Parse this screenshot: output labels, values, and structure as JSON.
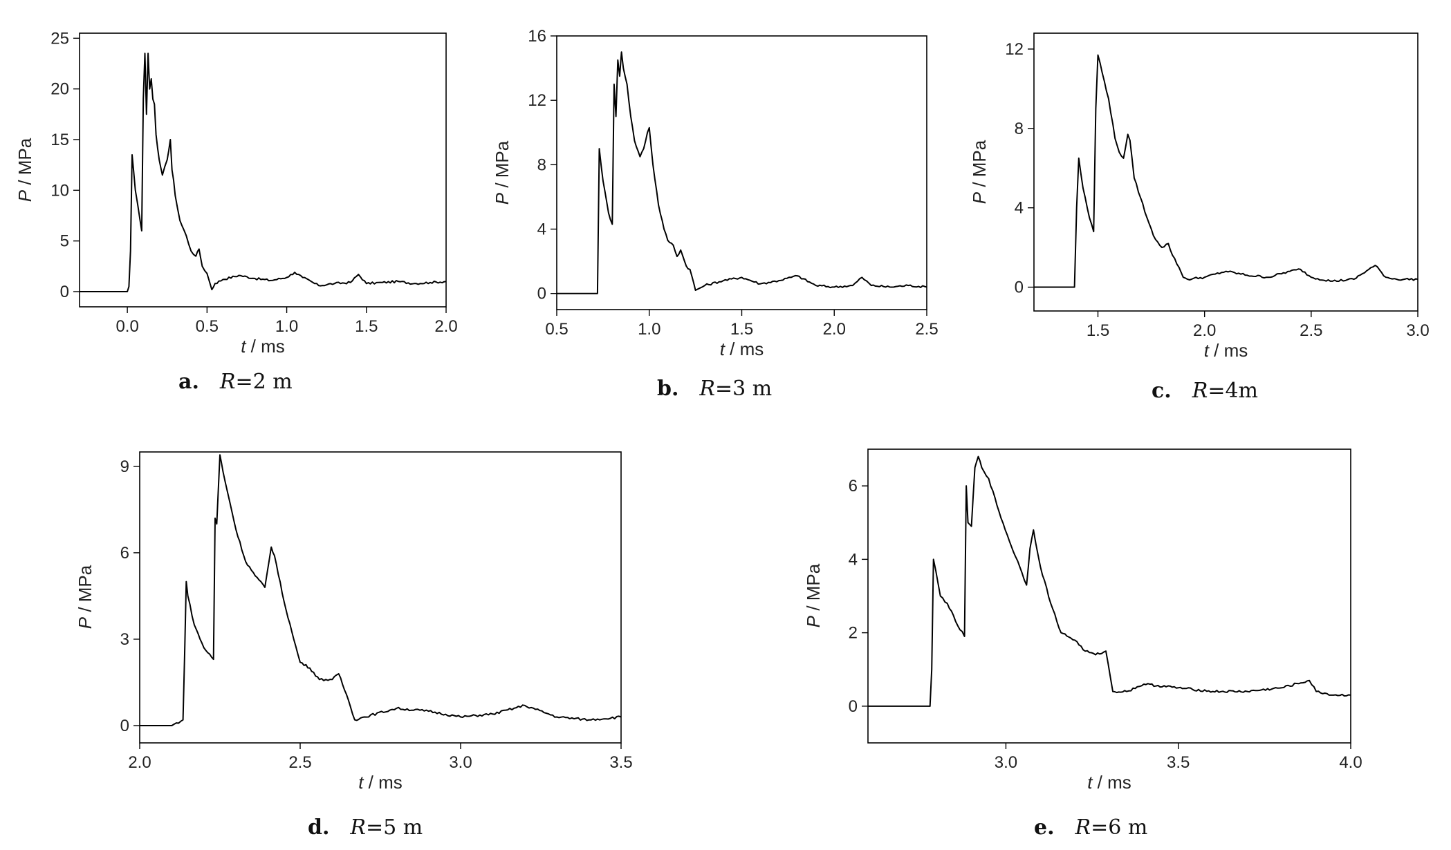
{
  "chart_data": [
    {
      "type": "line",
      "caption": {
        "letter": "a.",
        "label": "R",
        "value": "=2 m"
      },
      "xlabel": {
        "var": "t",
        "unit": " / ms"
      },
      "ylabel": {
        "var": "P",
        "unit": " / MPa"
      },
      "xlim": [
        -0.3,
        2.0
      ],
      "ylim": [
        -1.5,
        25.5
      ],
      "xticks": [
        0.0,
        0.5,
        1.0,
        1.5,
        2.0
      ],
      "xtick_labels": [
        "0.0",
        "0.5",
        "1.0",
        "1.5",
        "2.0"
      ],
      "yticks": [
        0,
        5,
        10,
        15,
        20,
        25
      ],
      "ytick_labels": [
        "0",
        "5",
        "10",
        "15",
        "20",
        "25"
      ],
      "series": [
        {
          "x": [
            -0.3,
            0.0,
            0.01,
            0.02,
            0.03,
            0.05,
            0.08,
            0.09,
            0.1,
            0.11,
            0.12,
            0.13,
            0.14,
            0.15,
            0.16,
            0.17,
            0.18,
            0.2,
            0.22,
            0.25,
            0.27,
            0.28,
            0.29,
            0.3,
            0.33,
            0.37,
            0.4,
            0.43,
            0.45,
            0.47,
            0.5,
            0.53,
            0.55,
            0.6,
            0.7,
            0.8,
            0.9,
            1.0,
            1.05,
            1.1,
            1.2,
            1.3,
            1.4,
            1.45,
            1.5,
            1.6,
            1.7,
            1.8,
            1.9,
            2.0
          ],
          "y": [
            0,
            0,
            0.5,
            4,
            13.5,
            10,
            7,
            6,
            19,
            23.5,
            17.5,
            23.5,
            20,
            21,
            19,
            18.5,
            15.5,
            13,
            11.5,
            13,
            15,
            12,
            11,
            9.5,
            7,
            5.5,
            4,
            3.5,
            4.2,
            2.5,
            1.8,
            0.2,
            0.8,
            1.2,
            1.6,
            1.3,
            1.1,
            1.4,
            1.9,
            1.4,
            0.6,
            0.8,
            0.9,
            1.7,
            0.8,
            0.9,
            1.0,
            0.8,
            0.9,
            1.0
          ]
        }
      ]
    },
    {
      "type": "line",
      "caption": {
        "letter": "b.",
        "label": "R",
        "value": "=3 m"
      },
      "xlabel": {
        "var": "t",
        "unit": " / ms"
      },
      "ylabel": {
        "var": "P",
        "unit": " / MPa"
      },
      "xlim": [
        0.5,
        2.5
      ],
      "ylim": [
        -1,
        16
      ],
      "xticks": [
        0.5,
        1.0,
        1.5,
        2.0,
        2.5
      ],
      "xtick_labels": [
        "0.5",
        "1.0",
        "1.5",
        "2.0",
        "2.5"
      ],
      "yticks": [
        0,
        4,
        8,
        12,
        16
      ],
      "ytick_labels": [
        "0",
        "4",
        "8",
        "12",
        "16"
      ],
      "series": [
        {
          "x": [
            0.5,
            0.72,
            0.73,
            0.75,
            0.78,
            0.8,
            0.81,
            0.82,
            0.83,
            0.84,
            0.85,
            0.86,
            0.88,
            0.9,
            0.92,
            0.95,
            0.97,
            0.99,
            1.0,
            1.02,
            1.05,
            1.08,
            1.1,
            1.13,
            1.15,
            1.17,
            1.2,
            1.22,
            1.25,
            1.3,
            1.4,
            1.5,
            1.6,
            1.7,
            1.8,
            1.9,
            2.0,
            2.1,
            2.15,
            2.2,
            2.3,
            2.4,
            2.5
          ],
          "y": [
            0,
            0,
            9,
            7,
            5,
            4.3,
            13,
            11,
            14.5,
            13.5,
            15,
            14,
            13,
            11,
            9.5,
            8.5,
            9,
            10,
            10.3,
            8,
            5.5,
            4,
            3.3,
            3,
            2.3,
            2.7,
            1.7,
            1.5,
            0.2,
            0.5,
            0.8,
            1.0,
            0.6,
            0.8,
            1.1,
            0.5,
            0.4,
            0.5,
            1.0,
            0.5,
            0.4,
            0.5,
            0.4
          ]
        }
      ]
    },
    {
      "type": "line",
      "caption": {
        "letter": "c.",
        "label": "R",
        "value": "=4m"
      },
      "xlabel": {
        "var": "t",
        "unit": " / ms"
      },
      "ylabel": {
        "var": "P",
        "unit": " / MPa"
      },
      "xlim": [
        1.2,
        3.0
      ],
      "ylim": [
        -1.2,
        12.8
      ],
      "xticks": [
        1.5,
        2.0,
        2.5,
        3.0
      ],
      "xtick_labels": [
        "1.5",
        "2.0",
        "2.5",
        "3.0"
      ],
      "yticks": [
        0,
        4,
        8,
        12
      ],
      "ytick_labels": [
        "0",
        "4",
        "8",
        "12"
      ],
      "series": [
        {
          "x": [
            1.2,
            1.39,
            1.4,
            1.41,
            1.43,
            1.46,
            1.48,
            1.49,
            1.5,
            1.51,
            1.52,
            1.55,
            1.58,
            1.6,
            1.62,
            1.64,
            1.65,
            1.67,
            1.7,
            1.73,
            1.76,
            1.8,
            1.83,
            1.85,
            1.88,
            1.9,
            1.92,
            2.0,
            2.1,
            2.2,
            2.3,
            2.4,
            2.45,
            2.5,
            2.6,
            2.7,
            2.8,
            2.85,
            2.9,
            3.0
          ],
          "y": [
            0,
            0,
            4,
            6.5,
            5,
            3.5,
            2.8,
            9,
            11.7,
            11.3,
            10.8,
            9.5,
            7.5,
            6.8,
            6.5,
            7.7,
            7.4,
            5.5,
            4.5,
            3.5,
            2.6,
            2.0,
            2.2,
            1.6,
            1.0,
            0.5,
            0.4,
            0.5,
            0.8,
            0.6,
            0.5,
            0.8,
            0.9,
            0.5,
            0.3,
            0.4,
            1.1,
            0.5,
            0.4,
            0.4
          ]
        }
      ]
    },
    {
      "type": "line",
      "caption": {
        "letter": "d.",
        "label": "R",
        "value": "=5 m"
      },
      "xlabel": {
        "var": "t",
        "unit": " / ms"
      },
      "ylabel": {
        "var": "P",
        "unit": " / MPa"
      },
      "xlim": [
        2.0,
        3.5
      ],
      "ylim": [
        -0.6,
        9.5
      ],
      "xticks": [
        2.0,
        2.5,
        3.0,
        3.5
      ],
      "xtick_labels": [
        "2.0",
        "2.5",
        "3.0",
        "3.5"
      ],
      "yticks": [
        0,
        3,
        6,
        9
      ],
      "ytick_labels": [
        "0",
        "3",
        "6",
        "9"
      ],
      "series": [
        {
          "x": [
            2.0,
            2.1,
            2.135,
            2.14,
            2.145,
            2.15,
            2.17,
            2.2,
            2.23,
            2.235,
            2.24,
            2.25,
            2.26,
            2.28,
            2.3,
            2.33,
            2.36,
            2.39,
            2.41,
            2.42,
            2.45,
            2.48,
            2.5,
            2.53,
            2.56,
            2.6,
            2.62,
            2.65,
            2.67,
            2.7,
            2.8,
            2.9,
            3.0,
            3.1,
            3.2,
            3.3,
            3.4,
            3.5
          ],
          "y": [
            0,
            0,
            0.2,
            2.5,
            5,
            4.5,
            3.5,
            2.7,
            2.3,
            7.2,
            7.0,
            9.4,
            8.8,
            7.8,
            6.8,
            5.7,
            5.2,
            4.8,
            6.2,
            5.9,
            4.3,
            3.0,
            2.2,
            2.0,
            1.6,
            1.6,
            1.8,
            0.9,
            0.2,
            0.3,
            0.6,
            0.5,
            0.3,
            0.4,
            0.7,
            0.3,
            0.2,
            0.3
          ]
        }
      ]
    },
    {
      "type": "line",
      "caption": {
        "letter": "e.",
        "label": "R",
        "value": "=6 m"
      },
      "xlabel": {
        "var": "t",
        "unit": " / ms"
      },
      "ylabel": {
        "var": "P",
        "unit": " / MPa"
      },
      "xlim": [
        2.6,
        4.0
      ],
      "ylim": [
        -1,
        7
      ],
      "xticks": [
        3.0,
        3.5,
        4.0
      ],
      "xtick_labels": [
        "3.0",
        "3.5",
        "4.0"
      ],
      "yticks": [
        0,
        2,
        4,
        6
      ],
      "ytick_labels": [
        "0",
        "2",
        "4",
        "6"
      ],
      "series": [
        {
          "x": [
            2.6,
            2.78,
            2.785,
            2.79,
            2.81,
            2.83,
            2.86,
            2.88,
            2.885,
            2.89,
            2.9,
            2.91,
            2.92,
            2.93,
            2.95,
            2.98,
            3.01,
            3.04,
            3.06,
            3.07,
            3.08,
            3.1,
            3.13,
            3.16,
            3.2,
            3.23,
            3.26,
            3.29,
            3.31,
            3.35,
            3.4,
            3.5,
            3.6,
            3.7,
            3.8,
            3.88,
            3.9,
            3.95,
            4.0
          ],
          "y": [
            0,
            0,
            1.0,
            4.0,
            3.0,
            2.8,
            2.2,
            1.9,
            6.0,
            5.0,
            4.9,
            6.5,
            6.8,
            6.5,
            6.2,
            5.3,
            4.5,
            3.8,
            3.3,
            4.3,
            4.8,
            3.8,
            2.8,
            2.0,
            1.8,
            1.5,
            1.4,
            1.5,
            0.4,
            0.4,
            0.6,
            0.5,
            0.4,
            0.4,
            0.5,
            0.7,
            0.4,
            0.3,
            0.3
          ]
        }
      ]
    }
  ]
}
